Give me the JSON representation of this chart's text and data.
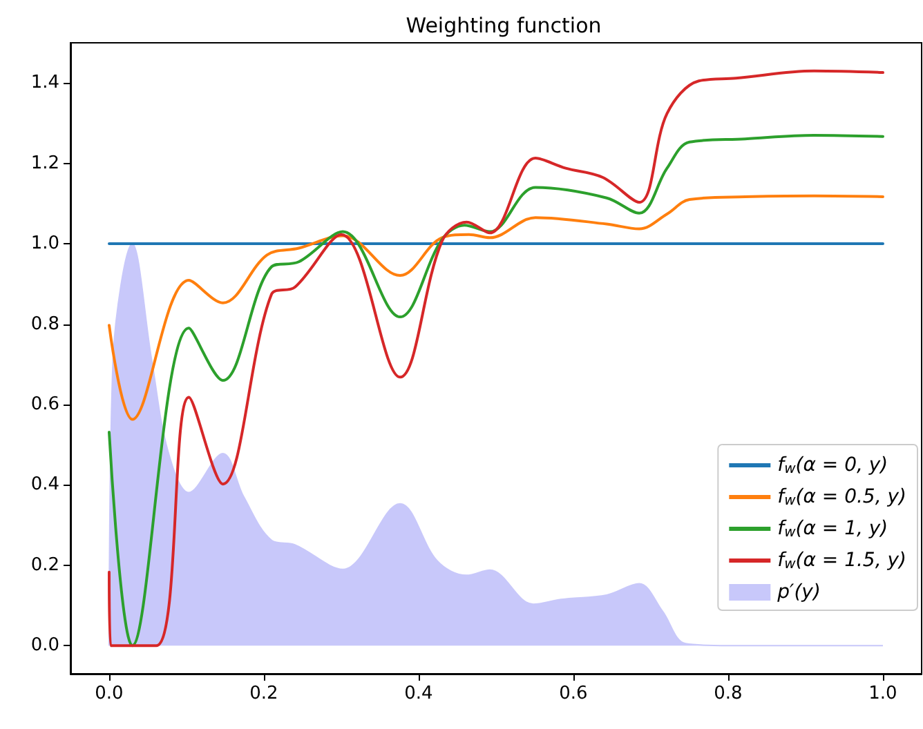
{
  "chart_data": {
    "type": "line",
    "title": "Weighting function",
    "xlim": [
      -0.05,
      1.05
    ],
    "ylim": [
      -0.07,
      1.5
    ],
    "xticks": [
      {
        "value": 0,
        "label": "0.0"
      },
      {
        "value": 0.2,
        "label": "0.2"
      },
      {
        "value": 0.4,
        "label": "0.4"
      },
      {
        "value": 0.6,
        "label": "0.6"
      },
      {
        "value": 0.8,
        "label": "0.8"
      },
      {
        "value": 1,
        "label": "1.0"
      }
    ],
    "yticks": [
      {
        "value": 0,
        "label": "0.0"
      },
      {
        "value": 0.2,
        "label": "0.2"
      },
      {
        "value": 0.4,
        "label": "0.4"
      },
      {
        "value": 0.6,
        "label": "0.6"
      },
      {
        "value": 0.8,
        "label": "0.8"
      },
      {
        "value": 1,
        "label": "1.0"
      },
      {
        "value": 1.2,
        "label": "1.2"
      },
      {
        "value": 1.4,
        "label": "1.4"
      }
    ],
    "legend": "bottom right",
    "marker": "none",
    "line_style": "solid",
    "series": [
      {
        "name": "f$_{w}$(α = 0, y)",
        "color": "#1f77b4",
        "x": [
          0,
          1
        ],
        "values": [
          1,
          1
        ]
      },
      {
        "name": "f$_{w}$(α = 0.5, y)",
        "color": "#ff7f0e",
        "x": [
          0,
          0.03,
          0.103,
          0.147,
          0.204,
          0.245,
          0.302,
          0.376,
          0.43,
          0.465,
          0.492,
          0.551,
          0.643,
          0.685,
          0.721,
          0.75,
          0.822,
          0.911,
          1
        ],
        "values": [
          0.797,
          0.563,
          0.909,
          0.853,
          0.972,
          0.989,
          1.02,
          0.921,
          1.015,
          1.023,
          1.015,
          1.065,
          1.049,
          1.037,
          1.074,
          1.11,
          1.117,
          1.119,
          1.117
        ]
      },
      {
        "name": "f$_{w}$(α = 1, y)",
        "color": "#2ca02c",
        "x": [
          0,
          0.03,
          0.103,
          0.147,
          0.21,
          0.245,
          0.302,
          0.376,
          0.43,
          0.459,
          0.492,
          0.551,
          0.643,
          0.685,
          0.721,
          0.75,
          0.822,
          0.911,
          1
        ],
        "values": [
          0.531,
          0,
          0.79,
          0.66,
          0.943,
          0.955,
          1.03,
          0.818,
          1.01,
          1.046,
          1.03,
          1.14,
          1.114,
          1.076,
          1.188,
          1.253,
          1.261,
          1.27,
          1.267
        ]
      },
      {
        "name": "f$_{w}$(α = 1.5, y)",
        "color": "#d62728",
        "x": [
          0,
          0.002,
          0.061,
          0.103,
          0.147,
          0.21,
          0.24,
          0.3,
          0.376,
          0.43,
          0.462,
          0.492,
          0.551,
          0.59,
          0.638,
          0.685,
          0.721,
          0.762,
          0.81,
          0.911,
          1
        ],
        "values": [
          0.183,
          0,
          0,
          0.618,
          0.402,
          0.875,
          0.892,
          1.023,
          0.668,
          1.006,
          1.054,
          1.027,
          1.213,
          1.188,
          1.165,
          1.103,
          1.324,
          1.405,
          1.412,
          1.43,
          1.426
        ]
      },
      {
        "name": "p′(y)",
        "type": "area",
        "color": "#c8c8fa",
        "x": [
          0,
          0.005,
          0.03,
          0.055,
          0.076,
          0.103,
          0.147,
          0.174,
          0.21,
          0.24,
          0.302,
          0.376,
          0.424,
          0.462,
          0.492,
          0.548,
          0.584,
          0.643,
          0.685,
          0.715,
          0.745,
          0.8,
          1
        ],
        "values": [
          0,
          0.71,
          1,
          0.71,
          0.484,
          0.381,
          0.478,
          0.37,
          0.262,
          0.251,
          0.19,
          0.353,
          0.211,
          0.175,
          0.188,
          0.103,
          0.115,
          0.126,
          0.154,
          0.086,
          0.005,
          0,
          0
        ]
      }
    ]
  }
}
